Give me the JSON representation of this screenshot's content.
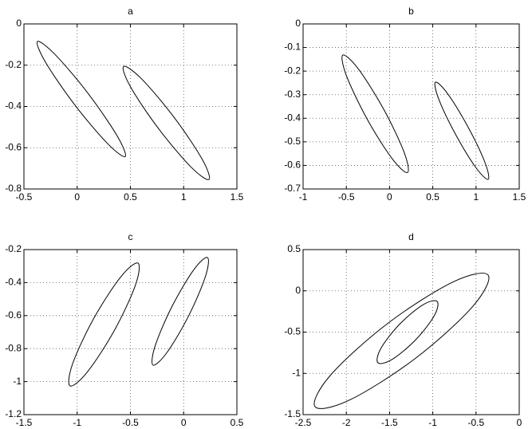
{
  "chart_data": [
    {
      "type": "line",
      "title": "a",
      "xlim": [
        -0.5,
        1.5
      ],
      "ylim": [
        -0.8,
        0
      ],
      "xticks": [
        -0.5,
        0,
        0.5,
        1,
        1.5
      ],
      "yticks": [
        0,
        -0.2,
        -0.4,
        -0.6,
        -0.8
      ],
      "grid": true,
      "series": [
        {
          "color": "#000000",
          "x": [
            0.451,
            0.376,
            0.104,
            -0.206,
            -0.373,
            -0.298,
            -0.026,
            0.284
          ],
          "y": [
            -0.643,
            -0.543,
            -0.338,
            -0.149,
            -0.085,
            -0.185,
            -0.39,
            -0.579
          ]
        },
        {
          "color": "#000000",
          "x": [
            1.238,
            1.172,
            0.909,
            0.604,
            0.436,
            0.502,
            0.765,
            1.07
          ],
          "y": [
            -0.754,
            -0.654,
            -0.452,
            -0.266,
            -0.206,
            -0.306,
            -0.508,
            -0.694
          ]
        }
      ]
    },
    {
      "type": "line",
      "title": "b",
      "xlim": [
        -1,
        1.5
      ],
      "ylim": [
        -0.7,
        0
      ],
      "xticks": [
        -1,
        -0.5,
        0,
        0.5,
        1,
        1.5
      ],
      "yticks": [
        0,
        -0.1,
        -0.2,
        -0.3,
        -0.4,
        -0.5,
        -0.6,
        -0.7
      ],
      "grid": true,
      "series": [
        {
          "color": "#000000",
          "x": [
            0.208,
            0.167,
            -0.069,
            -0.361,
            -0.54,
            -0.499,
            -0.263,
            0.029
          ],
          "y": [
            -0.63,
            -0.543,
            -0.361,
            -0.191,
            -0.132,
            -0.219,
            -0.401,
            -0.571
          ]
        },
        {
          "color": "#000000",
          "x": [
            1.141,
            1.104,
            0.909,
            0.672,
            0.531,
            0.568,
            0.763,
            1.0
          ],
          "y": [
            -0.659,
            -0.588,
            -0.438,
            -0.296,
            -0.247,
            -0.318,
            -0.468,
            -0.61
          ]
        }
      ]
    },
    {
      "type": "line",
      "title": "c",
      "xlim": [
        -1.5,
        0.5
      ],
      "ylim": [
        -1.2,
        -0.2
      ],
      "xticks": [
        -1.5,
        -1,
        -0.5,
        0,
        0.5
      ],
      "yticks": [
        -0.2,
        -0.4,
        -0.6,
        -0.8,
        -1,
        -1.2
      ],
      "grid": true,
      "series": [
        {
          "color": "#000000",
          "x": [
            -0.429,
            -0.453,
            -0.65,
            -0.905,
            -1.067,
            -1.043,
            -0.846,
            -0.591
          ],
          "y": [
            -0.282,
            -0.416,
            -0.689,
            -0.942,
            -1.026,
            -0.892,
            -0.619,
            -0.366
          ]
        },
        {
          "color": "#000000",
          "x": [
            0.223,
            0.205,
            0.048,
            -0.155,
            -0.287,
            -0.269,
            -0.112,
            0.091
          ],
          "y": [
            -0.248,
            -0.362,
            -0.6,
            -0.822,
            -0.9,
            -0.786,
            -0.548,
            -0.326
          ]
        }
      ]
    },
    {
      "type": "line",
      "title": "d",
      "xlim": [
        -2.5,
        0
      ],
      "ylim": [
        -1.5,
        0.5
      ],
      "xticks": [
        -2.5,
        -2,
        -1.5,
        -1,
        -0.5,
        0
      ],
      "yticks": [
        0.5,
        0,
        -0.5,
        -1,
        -1.5
      ],
      "grid": true,
      "series": [
        {
          "color": "#000000",
          "x": [
            -0.36,
            -0.543,
            -1.205,
            -1.959,
            -2.362,
            -2.179,
            -1.517,
            -0.763
          ],
          "y": [
            0.191,
            -0.195,
            -0.821,
            -1.321,
            -1.403,
            -1.017,
            -0.391,
            0.109
          ]
        },
        {
          "color": "#000000",
          "x": [
            -0.95,
            -0.984,
            -1.199,
            -1.468,
            -1.634,
            -1.6,
            -1.385,
            -1.116
          ],
          "y": [
            -0.128,
            -0.303,
            -0.594,
            -0.829,
            -0.872,
            -0.697,
            -0.406,
            -0.171
          ]
        }
      ]
    }
  ]
}
